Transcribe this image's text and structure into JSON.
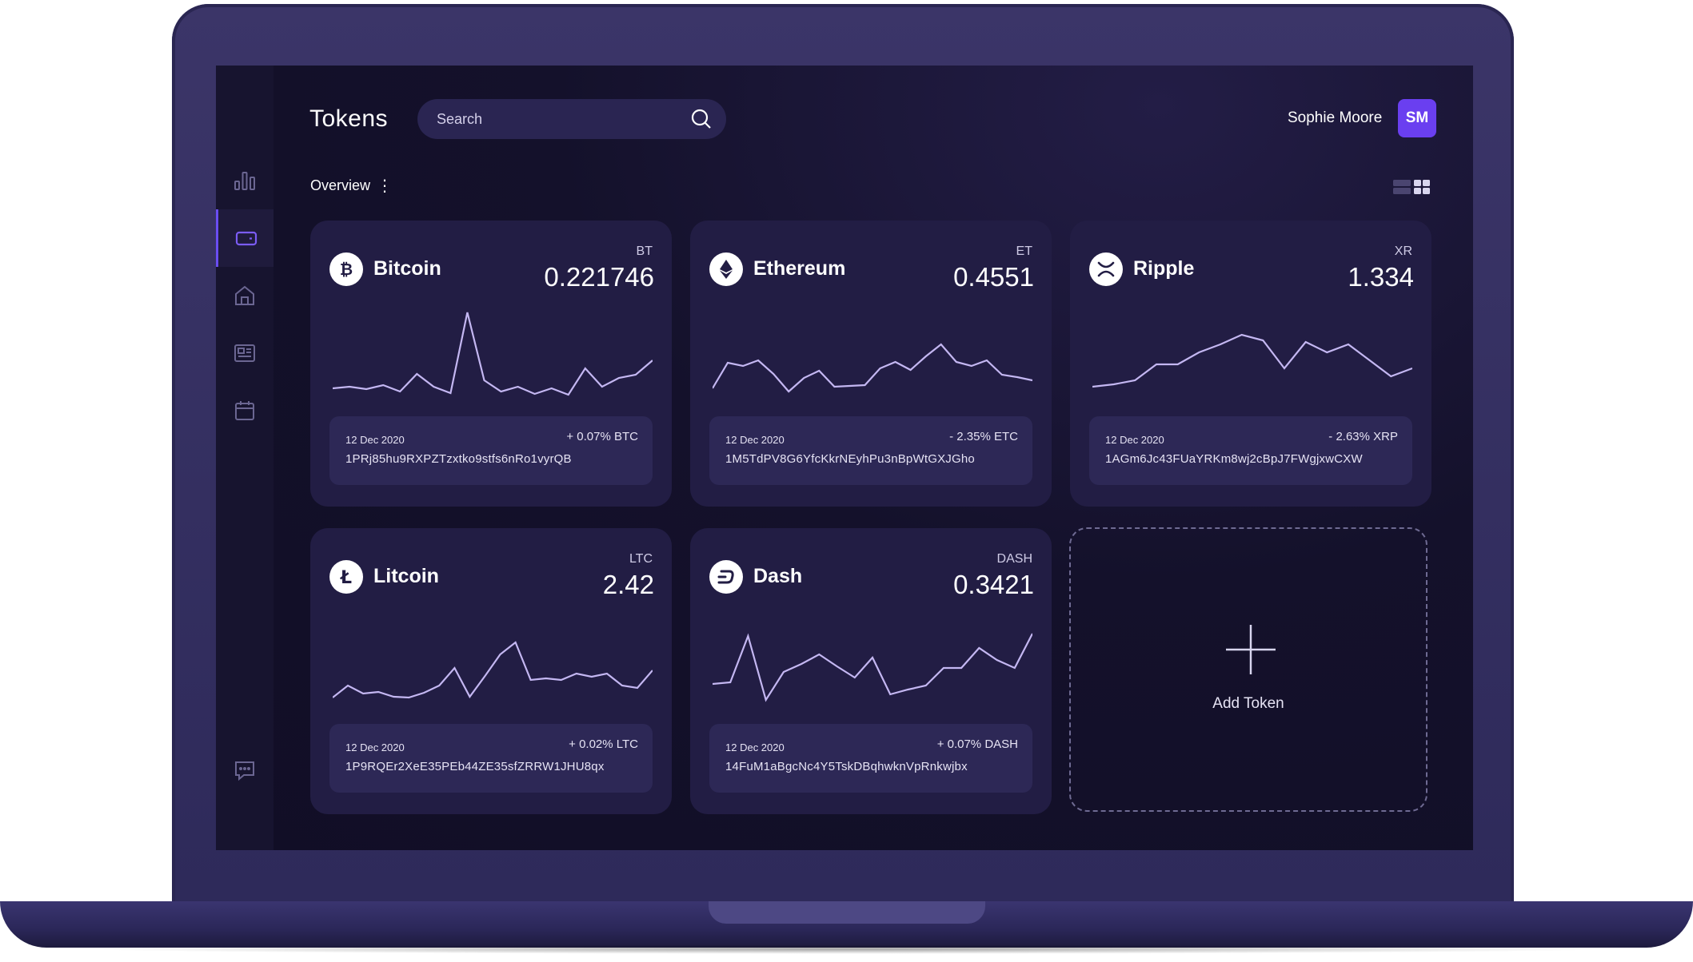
{
  "header": {
    "title": "Tokens",
    "search_placeholder": "Search",
    "user_name": "Sophie Moore",
    "user_initials": "SM"
  },
  "overview_label": "Overview",
  "sidebar": {
    "items": [
      {
        "name": "bar-chart-icon",
        "active": false
      },
      {
        "name": "wallet-icon",
        "active": true
      },
      {
        "name": "home-icon",
        "active": false
      },
      {
        "name": "news-icon",
        "active": false
      },
      {
        "name": "calendar-icon",
        "active": false
      },
      {
        "name": "chat-icon",
        "active": false
      }
    ]
  },
  "tokens": [
    {
      "name": "Bitcoin",
      "ticker": "BT",
      "amount": "0.221746",
      "icon": "bitcoin-icon",
      "date": "12 Dec 2020",
      "change": "+ 0.07% BTC",
      "address": "1PRj85hu9RXPZTzxtko9stfs6nRo1vyrQB",
      "spark": [
        20,
        22,
        19,
        24,
        16,
        38,
        22,
        14,
        115,
        30,
        16,
        22,
        13,
        20,
        12,
        45,
        22,
        33,
        37,
        55
      ]
    },
    {
      "name": "Ethereum",
      "ticker": "ET",
      "amount": "0.4551",
      "icon": "ethereum-icon",
      "date": "12 Dec 2020",
      "change": "- 2.35% ETC",
      "address": "1M5TdPV8G6YfcKkrNEyhPu3nBpWtGXJGho",
      "spark": [
        20,
        52,
        48,
        55,
        38,
        16,
        33,
        42,
        22,
        23,
        24,
        45,
        53,
        43,
        60,
        75,
        53,
        48,
        55,
        37,
        34,
        30
      ]
    },
    {
      "name": "Ripple",
      "ticker": "XR",
      "amount": "1.334",
      "icon": "ripple-icon",
      "date": "12 Dec 2020",
      "change": "- 2.63% XRP",
      "address": "1AGm6Jc43FUaYRKm8wj2cBpJ7FWgjxwCXW",
      "spark": [
        22,
        25,
        30,
        50,
        50,
        65,
        75,
        87,
        80,
        45,
        78,
        65,
        75,
        55,
        35,
        45
      ]
    },
    {
      "name": "Litcoin",
      "ticker": "LTC",
      "amount": "2.42",
      "icon": "litecoin-icon",
      "date": "12 Dec 2020",
      "change": "+ 0.02% LTC",
      "address": "1P9RQEr2XeE35PEb44ZE35sfZRRW1JHU8qx",
      "spark": [
        18,
        33,
        23,
        25,
        19,
        18,
        24,
        33,
        55,
        19,
        45,
        72,
        87,
        40,
        42,
        40,
        48,
        44,
        48,
        33,
        30,
        52
      ]
    },
    {
      "name": "Dash",
      "ticker": "DASH",
      "amount": "0.3421",
      "icon": "dash-icon",
      "date": "12 Dec 2020",
      "change": "+ 0.07% DASH",
      "address": "14FuM1aBgcNc4Y5TskDBqhwknVpRnkwjbx",
      "spark": [
        35,
        37,
        95,
        15,
        50,
        60,
        72,
        57,
        43,
        68,
        22,
        28,
        33,
        55,
        55,
        80,
        65,
        55,
        98
      ]
    }
  ],
  "add_token_label": "Add Token"
}
